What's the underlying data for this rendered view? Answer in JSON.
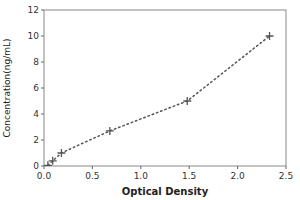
{
  "chart_data": {
    "type": "line",
    "xlabel": "Optical Density",
    "ylabel": "Concentration(ng/mL)",
    "x": [
      0.04,
      0.09,
      0.18,
      0.68,
      1.48,
      2.33
    ],
    "values": [
      0.05,
      0.4,
      1.0,
      2.7,
      5.0,
      10.0
    ],
    "color": "#555555",
    "marker": "plus",
    "line_style": "dotted",
    "xlim": [
      0,
      2.5
    ],
    "ylim": [
      0,
      12
    ],
    "xticks": [
      {
        "value": 0,
        "label": "0.0"
      },
      0.5,
      {
        "value": 1,
        "label": "1.0"
      },
      {
        "value": 1.5,
        "label": "1.5"
      },
      {
        "value": 2,
        "label": "2.0"
      },
      2.5
    ],
    "yticks": [
      0,
      2,
      4,
      6,
      8,
      10,
      12
    ]
  }
}
